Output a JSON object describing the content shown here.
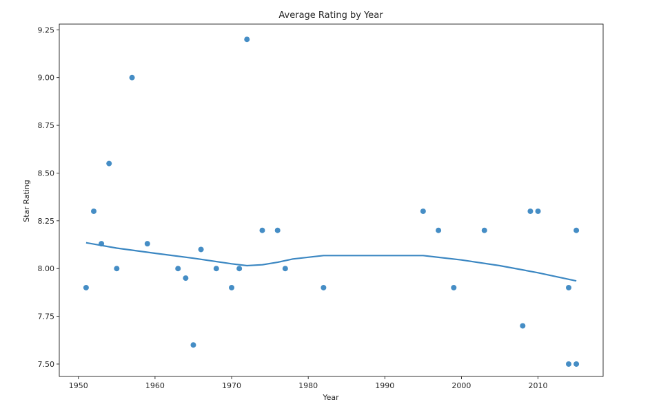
{
  "chart_data": {
    "type": "scatter",
    "title": "Average Rating by Year",
    "xlabel": "Year",
    "ylabel": "Star Rating",
    "xlim": [
      1947.5,
      2018.5
    ],
    "ylim": [
      7.435,
      9.28
    ],
    "xticks": [
      1950,
      1960,
      1970,
      1980,
      1990,
      2000,
      2010
    ],
    "yticks": [
      7.5,
      7.75,
      8.0,
      8.25,
      8.5,
      8.75,
      9.0,
      9.25
    ],
    "grid": false,
    "point_color": "#3b87c2",
    "line_color": "#3b87c2",
    "points": [
      {
        "x": 1951,
        "y": 7.9
      },
      {
        "x": 1952,
        "y": 8.3
      },
      {
        "x": 1953,
        "y": 8.13
      },
      {
        "x": 1954,
        "y": 8.55
      },
      {
        "x": 1955,
        "y": 8.0
      },
      {
        "x": 1957,
        "y": 9.0
      },
      {
        "x": 1959,
        "y": 8.13
      },
      {
        "x": 1963,
        "y": 8.0
      },
      {
        "x": 1964,
        "y": 7.95
      },
      {
        "x": 1965,
        "y": 7.6
      },
      {
        "x": 1966,
        "y": 8.1
      },
      {
        "x": 1968,
        "y": 8.0
      },
      {
        "x": 1970,
        "y": 7.9
      },
      {
        "x": 1971,
        "y": 8.0
      },
      {
        "x": 1972,
        "y": 9.2
      },
      {
        "x": 1974,
        "y": 8.2
      },
      {
        "x": 1976,
        "y": 8.2
      },
      {
        "x": 1977,
        "y": 8.0
      },
      {
        "x": 1982,
        "y": 7.9
      },
      {
        "x": 1995,
        "y": 8.3
      },
      {
        "x": 1997,
        "y": 8.2
      },
      {
        "x": 1999,
        "y": 7.9
      },
      {
        "x": 2003,
        "y": 8.2
      },
      {
        "x": 2008,
        "y": 7.7
      },
      {
        "x": 2009,
        "y": 8.3
      },
      {
        "x": 2010,
        "y": 8.3
      },
      {
        "x": 2014,
        "y": 7.9
      },
      {
        "x": 2014,
        "y": 7.5
      },
      {
        "x": 2015,
        "y": 8.2
      },
      {
        "x": 2015,
        "y": 7.5
      }
    ],
    "trend_line": [
      {
        "x": 1951,
        "y": 8.135
      },
      {
        "x": 1955,
        "y": 8.107
      },
      {
        "x": 1960,
        "y": 8.08
      },
      {
        "x": 1965,
        "y": 8.054
      },
      {
        "x": 1970,
        "y": 8.025
      },
      {
        "x": 1972,
        "y": 8.015
      },
      {
        "x": 1974,
        "y": 8.02
      },
      {
        "x": 1976,
        "y": 8.033
      },
      {
        "x": 1978,
        "y": 8.05
      },
      {
        "x": 1982,
        "y": 8.068
      },
      {
        "x": 1990,
        "y": 8.068
      },
      {
        "x": 1995,
        "y": 8.068
      },
      {
        "x": 2000,
        "y": 8.045
      },
      {
        "x": 2005,
        "y": 8.015
      },
      {
        "x": 2010,
        "y": 7.978
      },
      {
        "x": 2015,
        "y": 7.935
      }
    ]
  }
}
